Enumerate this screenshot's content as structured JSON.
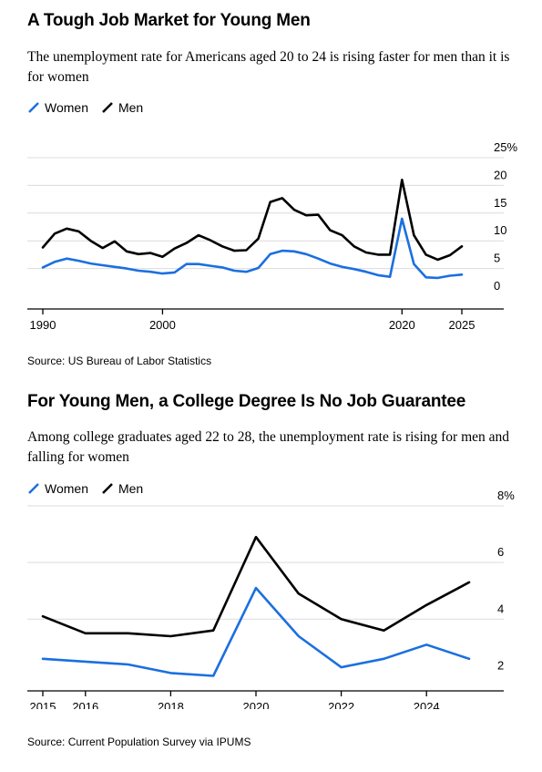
{
  "chart_data": [
    {
      "type": "line",
      "title": "A Tough Job Market for Young Men",
      "subtitle": "The unemployment rate for Americans aged 20 to 24 is rising faster for men than it is for women",
      "source": "Source: US Bureau of Labor Statistics",
      "legend": [
        "Women",
        "Men"
      ],
      "legend_position": "top-left",
      "grid": true,
      "ylim": [
        0,
        25
      ],
      "y_ticks": [
        0,
        5,
        10,
        15,
        20,
        25
      ],
      "y_tick_labels": [
        "0",
        "5",
        "10",
        "15",
        "20",
        "25%"
      ],
      "xlim": [
        1990,
        2025
      ],
      "x_ticks": [
        1990,
        2000,
        2020,
        2025
      ],
      "x_tick_labels": [
        "1990",
        "2000",
        "2020",
        "2025"
      ],
      "x": [
        1990,
        1991,
        1992,
        1993,
        1994,
        1995,
        1996,
        1997,
        1998,
        1999,
        2000,
        2001,
        2002,
        2003,
        2004,
        2005,
        2006,
        2007,
        2008,
        2009,
        2010,
        2011,
        2012,
        2013,
        2014,
        2015,
        2016,
        2017,
        2018,
        2019,
        2020,
        2021,
        2022,
        2023,
        2024,
        2025
      ],
      "series": [
        {
          "name": "Women",
          "color": "#1b6fe0",
          "values": [
            5.2,
            6.2,
            6.8,
            6.4,
            5.9,
            5.6,
            5.3,
            5.0,
            4.6,
            4.4,
            4.1,
            4.3,
            5.8,
            5.8,
            5.5,
            5.2,
            4.6,
            4.4,
            5.1,
            7.6,
            8.2,
            8.1,
            7.6,
            6.8,
            5.9,
            5.3,
            4.9,
            4.4,
            3.8,
            3.5,
            14.0,
            5.8,
            3.4,
            3.3,
            3.7,
            3.9
          ]
        },
        {
          "name": "Men",
          "color": "#000000",
          "values": [
            8.8,
            11.3,
            12.2,
            11.7,
            10.0,
            8.7,
            9.9,
            8.1,
            7.6,
            7.8,
            7.1,
            8.6,
            9.6,
            11.0,
            10.1,
            9.0,
            8.2,
            8.3,
            10.4,
            17.0,
            17.7,
            15.6,
            14.6,
            14.7,
            11.9,
            11.0,
            9.0,
            7.9,
            7.5,
            7.5,
            21.0,
            11.0,
            7.5,
            6.6,
            7.4,
            9.0
          ]
        }
      ]
    },
    {
      "type": "line",
      "title": "For Young Men, a College Degree Is No Job Guarantee",
      "subtitle": "Among college graduates aged 22 to 28, the unemployment rate is rising for men and falling for women",
      "source": "Source: Current Population Survey via IPUMS",
      "legend": [
        "Women",
        "Men"
      ],
      "legend_position": "top-left",
      "grid": true,
      "ylim": [
        1.5,
        8
      ],
      "y_ticks": [
        2,
        4,
        6,
        8
      ],
      "y_tick_labels": [
        "2",
        "4",
        "6",
        "8%"
      ],
      "xlim": [
        2015,
        2025
      ],
      "x_ticks": [
        2015,
        2016,
        2018,
        2020,
        2022,
        2024
      ],
      "x_tick_labels": [
        "2015",
        "2016",
        "2018",
        "2020",
        "2022",
        "2024"
      ],
      "x": [
        2015,
        2016,
        2017,
        2018,
        2019,
        2020,
        2021,
        2022,
        2023,
        2024,
        2025
      ],
      "series": [
        {
          "name": "Women",
          "color": "#1b6fe0",
          "values": [
            2.6,
            2.5,
            2.4,
            2.1,
            2.0,
            5.1,
            3.4,
            2.3,
            2.6,
            3.1,
            2.6
          ]
        },
        {
          "name": "Men",
          "color": "#000000",
          "values": [
            4.1,
            3.5,
            3.5,
            3.4,
            3.6,
            6.9,
            4.9,
            4.0,
            3.6,
            4.5,
            5.3
          ]
        }
      ]
    }
  ]
}
